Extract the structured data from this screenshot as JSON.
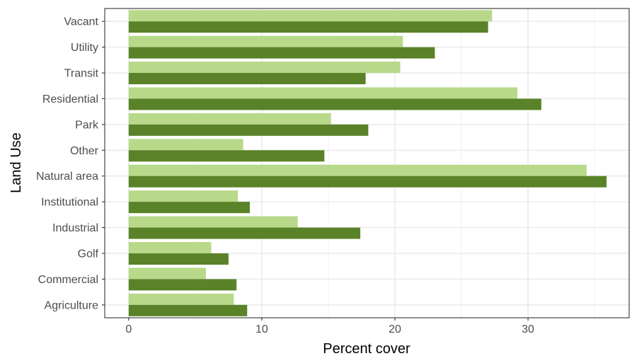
{
  "chart_data": {
    "type": "bar",
    "orientation": "horizontal",
    "xlabel": "Percent cover",
    "ylabel": "Land Use",
    "xlim": [
      -1.8,
      37.6
    ],
    "xticks": [
      0,
      10,
      20,
      30
    ],
    "grid": true,
    "legend": "none",
    "categories": [
      "Vacant",
      "Utility",
      "Transit",
      "Residential",
      "Park",
      "Other",
      "Natural area",
      "Institutional",
      "Industrial",
      "Golf",
      "Commercial",
      "Agriculture"
    ],
    "series": [
      {
        "color": "#b8d98a",
        "values": [
          27.3,
          20.6,
          20.4,
          29.2,
          15.2,
          8.6,
          34.4,
          8.2,
          12.7,
          6.2,
          5.8,
          7.9
        ]
      },
      {
        "color": "#5a8228",
        "values": [
          27.0,
          23.0,
          17.8,
          31.0,
          18.0,
          14.7,
          35.9,
          9.1,
          17.4,
          7.5,
          8.1,
          8.9
        ]
      }
    ]
  }
}
